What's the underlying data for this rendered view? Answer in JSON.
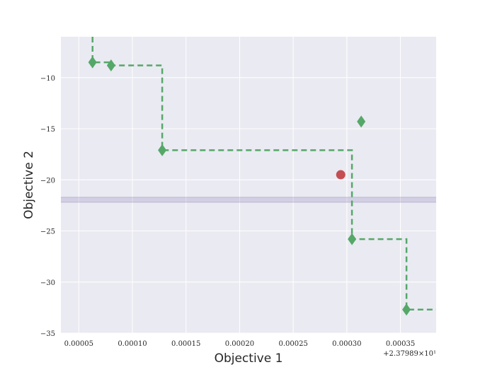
{
  "chart_data": {
    "type": "scatter",
    "title": "",
    "xlabel": "Objective 1",
    "ylabel": "Objective 2",
    "x_offset_label": "+2.37989×10¹",
    "xlim": [
      3.33e-05,
      0.0003833
    ],
    "ylim": [
      -35,
      -6
    ],
    "x_ticks": [
      {
        "value": 5e-05,
        "label": "0.00005"
      },
      {
        "value": 0.0001,
        "label": "0.00010"
      },
      {
        "value": 0.00015,
        "label": "0.00015"
      },
      {
        "value": 0.0002,
        "label": "0.00020"
      },
      {
        "value": 0.00025,
        "label": "0.00025"
      },
      {
        "value": 0.0003,
        "label": "0.00030"
      },
      {
        "value": 0.00035,
        "label": "0.00035"
      }
    ],
    "y_ticks": [
      {
        "value": -10,
        "label": "−10"
      },
      {
        "value": -15,
        "label": "−15"
      },
      {
        "value": -20,
        "label": "−20"
      },
      {
        "value": -25,
        "label": "−25"
      },
      {
        "value": -30,
        "label": "−30"
      },
      {
        "value": -35,
        "label": "−35"
      }
    ],
    "grid": true,
    "series": [
      {
        "marker": "diamond",
        "color": "#55a868",
        "points": [
          {
            "x": 6.28e-05,
            "y": -8.5
          },
          {
            "x": 8.01e-05,
            "y": -8.8
          },
          {
            "x": 0.0001278,
            "y": -17.1
          },
          {
            "x": 0.0003048,
            "y": -25.8
          },
          {
            "x": 0.0003556,
            "y": -32.7
          },
          {
            "x": 0.0003134,
            "y": -14.3
          }
        ]
      },
      {
        "marker": "circle",
        "color": "#c44e52",
        "points": [
          {
            "x": 0.0002943,
            "y": -19.5
          }
        ]
      }
    ],
    "front_line": {
      "style": "dashed",
      "color": "#55a868",
      "path": [
        {
          "x": 6.28e-05,
          "y": -6
        },
        {
          "x": 6.28e-05,
          "y": -8.5
        },
        {
          "x": 8.01e-05,
          "y": -8.5
        },
        {
          "x": 8.01e-05,
          "y": -8.8
        },
        {
          "x": 0.0001278,
          "y": -8.8
        },
        {
          "x": 0.0001278,
          "y": -17.1
        },
        {
          "x": 0.0003048,
          "y": -17.1
        },
        {
          "x": 0.0003048,
          "y": -25.8
        },
        {
          "x": 0.0003556,
          "y": -25.8
        },
        {
          "x": 0.0003556,
          "y": -32.7
        },
        {
          "x": 0.0003833,
          "y": -32.7
        }
      ]
    },
    "reference_band": {
      "y_low": -22.2,
      "y_high": -21.7,
      "color": "#8172b2"
    }
  }
}
